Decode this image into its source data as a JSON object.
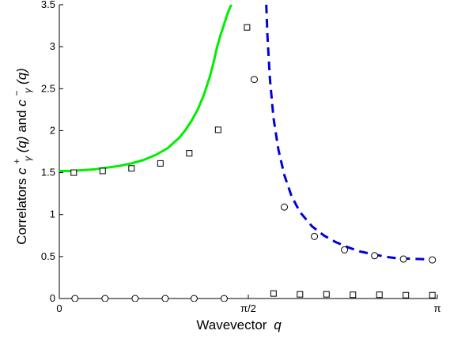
{
  "chart_data": {
    "type": "scatter",
    "title": "",
    "xlabel": "Wavevector",
    "xlabel_var": "q",
    "ylabel_prefix": "Correlators ",
    "ylabel_mid": " and ",
    "ylabel_c": "c",
    "ylabel_plus": "+",
    "ylabel_minus": "−",
    "ylabel_gamma": "γ",
    "ylabel_arg": "(q)",
    "xlim": [
      0,
      3.14159
    ],
    "ylim": [
      0,
      3.5
    ],
    "grid": false,
    "legend": "none",
    "xticks": [
      {
        "value": 0,
        "label": "0"
      },
      {
        "value": 1.5708,
        "label": "π/2"
      },
      {
        "value": 3.14159,
        "label": "π"
      }
    ],
    "yticks": [
      {
        "value": 0,
        "label": "0"
      },
      {
        "value": 0.5,
        "label": "0.5"
      },
      {
        "value": 1,
        "label": "1"
      },
      {
        "value": 1.5,
        "label": "1.5"
      },
      {
        "value": 2,
        "label": "2"
      },
      {
        "value": 2.5,
        "label": "2.5"
      },
      {
        "value": 3,
        "label": "3"
      },
      {
        "value": 3.5,
        "label": "3.5"
      }
    ],
    "series": [
      {
        "kind": "line",
        "style": "solid",
        "color": "#00ee00",
        "x": [
          0,
          0.1,
          0.2,
          0.3,
          0.4,
          0.5,
          0.6,
          0.7,
          0.8,
          0.9,
          1.0,
          1.05,
          1.1,
          1.15,
          1.2,
          1.25,
          1.28,
          1.31,
          1.34,
          1.37,
          1.39,
          1.41,
          1.43
        ],
        "y": [
          1.52,
          1.52,
          1.53,
          1.54,
          1.56,
          1.58,
          1.61,
          1.65,
          1.71,
          1.79,
          1.92,
          2.01,
          2.12,
          2.25,
          2.42,
          2.64,
          2.8,
          2.99,
          3.14,
          3.27,
          3.36,
          3.44,
          3.5
        ]
      },
      {
        "kind": "line",
        "style": "dashed",
        "color": "#0000dd",
        "x": [
          1.72,
          1.73,
          1.75,
          1.78,
          1.82,
          1.87,
          1.93,
          2.0,
          2.1,
          2.2,
          2.3,
          2.4,
          2.5,
          2.6,
          2.7,
          2.8,
          2.9,
          3.0,
          3.1
        ],
        "y": [
          3.5,
          3.12,
          2.62,
          2.15,
          1.78,
          1.47,
          1.22,
          1.03,
          0.86,
          0.75,
          0.67,
          0.61,
          0.56,
          0.53,
          0.5,
          0.48,
          0.475,
          0.47,
          0.465
        ]
      },
      {
        "kind": "markers",
        "marker": "square",
        "x": [
          0.12,
          0.36,
          0.6,
          0.84,
          1.08,
          1.32,
          1.56,
          1.78,
          2.0,
          2.22,
          2.44,
          2.66,
          2.88,
          3.1
        ],
        "y": [
          1.5,
          1.52,
          1.55,
          1.61,
          1.73,
          2.01,
          3.23,
          0.06,
          0.05,
          0.05,
          0.045,
          0.045,
          0.04,
          0.04
        ]
      },
      {
        "kind": "markers",
        "marker": "circle",
        "x": [
          0.13,
          0.38,
          0.63,
          0.88,
          1.12,
          1.37,
          1.62,
          1.87,
          2.12,
          2.37,
          2.62,
          2.86,
          3.1
        ],
        "y": [
          0.0,
          0.0,
          0.0,
          0.0,
          0.0,
          0.0,
          2.61,
          1.09,
          0.74,
          0.58,
          0.51,
          0.47,
          0.46
        ]
      }
    ]
  }
}
